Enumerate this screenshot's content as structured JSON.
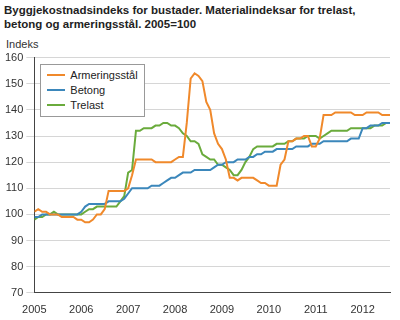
{
  "chart_data": {
    "type": "line",
    "title": "Byggjekostnadsindeks for bustader. Materialindeksar for trelast, betong og armeringsstål. 2005=100",
    "y_label": "Indeks",
    "categories": [
      "2005",
      null,
      null,
      null,
      null,
      null,
      null,
      null,
      null,
      null,
      null,
      null,
      "2006",
      null,
      null,
      null,
      null,
      null,
      null,
      null,
      null,
      null,
      null,
      null,
      "2007",
      null,
      null,
      null,
      null,
      null,
      null,
      null,
      null,
      null,
      null,
      null,
      "2008",
      null,
      null,
      null,
      null,
      null,
      null,
      null,
      null,
      null,
      null,
      null,
      "2009",
      null,
      null,
      null,
      null,
      null,
      null,
      null,
      null,
      null,
      null,
      null,
      "2010",
      null,
      null,
      null,
      null,
      null,
      null,
      null,
      null,
      null,
      null,
      null,
      "2011",
      null,
      null,
      null,
      null,
      null,
      null,
      null,
      null,
      null,
      null,
      null,
      "2012",
      null,
      null,
      null,
      null,
      null,
      null,
      null
    ],
    "series": [
      {
        "name": "Armeringsstål",
        "color": "#f0892b",
        "values": [
          101,
          102,
          101,
          101,
          100,
          100,
          100,
          99,
          99,
          99,
          99,
          98,
          98,
          97,
          97,
          98,
          100,
          100,
          102,
          109,
          109,
          109,
          109,
          109,
          110,
          115,
          121,
          121,
          121,
          121,
          121,
          120,
          120,
          120,
          120,
          120,
          121,
          122,
          122,
          135,
          152,
          154,
          153,
          151,
          143,
          140,
          131,
          127,
          125,
          121,
          114,
          114,
          113,
          114,
          114,
          114,
          114,
          113,
          112,
          112,
          111,
          111,
          111,
          119,
          121,
          128,
          128,
          129,
          129,
          130,
          130,
          126,
          126,
          129,
          138,
          138,
          138,
          139,
          139,
          139,
          139,
          139,
          138,
          138,
          138,
          139,
          139,
          139,
          139,
          138,
          138,
          138
        ]
      },
      {
        "name": "Betong",
        "color": "#3b87bb",
        "values": [
          99,
          99,
          100,
          100,
          100,
          100,
          100,
          100,
          100,
          100,
          100,
          100,
          101,
          103,
          104,
          104,
          104,
          104,
          104,
          105,
          105,
          105,
          105,
          106,
          108,
          110,
          110,
          110,
          110,
          110,
          111,
          111,
          111,
          112,
          113,
          114,
          114,
          115,
          116,
          116,
          116,
          117,
          117,
          117,
          117,
          117,
          118,
          119,
          119,
          120,
          120,
          120,
          121,
          121,
          121,
          122,
          122,
          123,
          123,
          124,
          124,
          124,
          125,
          125,
          125,
          125,
          125,
          126,
          126,
          126,
          126,
          127,
          127,
          127,
          128,
          128,
          128,
          128,
          128,
          128,
          128,
          129,
          129,
          129,
          133,
          133,
          134,
          134,
          134,
          135,
          135,
          135
        ]
      },
      {
        "name": "Trelast",
        "color": "#6aab3c",
        "values": [
          98,
          99,
          99,
          100,
          100,
          101,
          100,
          100,
          100,
          100,
          100,
          100,
          100,
          101,
          102,
          102,
          103,
          103,
          103,
          103,
          103,
          103,
          105,
          107,
          116,
          117,
          132,
          132,
          133,
          133,
          133,
          134,
          134,
          135,
          135,
          134,
          134,
          133,
          131,
          130,
          128,
          128,
          127,
          123,
          122,
          121,
          121,
          119,
          119,
          118,
          117,
          115,
          115,
          117,
          120,
          122,
          125,
          126,
          126,
          126,
          126,
          126,
          127,
          127,
          127,
          128,
          128,
          129,
          129,
          129,
          130,
          130,
          130,
          129,
          130,
          131,
          132,
          132,
          132,
          132,
          132,
          133,
          133,
          133,
          133,
          133,
          133,
          134,
          134,
          134,
          135,
          135
        ]
      }
    ],
    "ylim": [
      70,
      160
    ],
    "yticks": [
      70,
      80,
      90,
      100,
      110,
      120,
      130,
      140,
      150,
      160
    ],
    "grid": true,
    "legend": "upper left"
  }
}
